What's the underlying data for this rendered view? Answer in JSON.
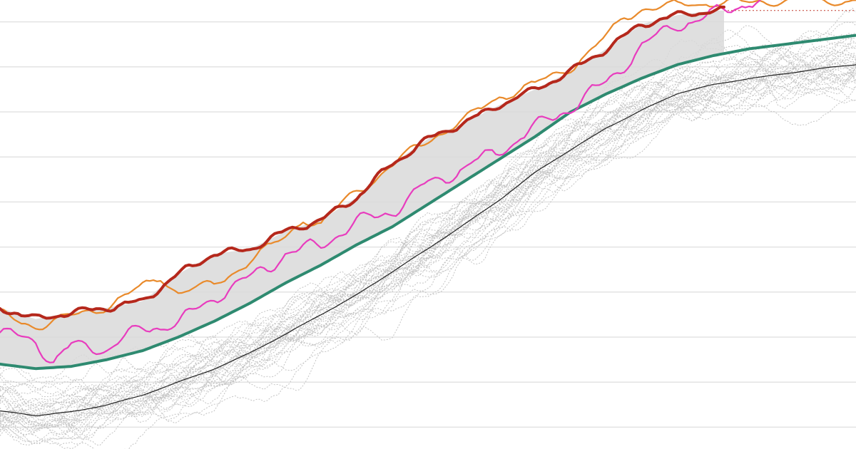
{
  "chart_data": {
    "type": "line",
    "title": "",
    "xlabel": "",
    "ylabel": "",
    "grid": true,
    "legend": "none",
    "xlim": [
      0,
      240
    ],
    "ylim": [
      0,
      20
    ],
    "gridlines": [
      1,
      3,
      5,
      7,
      9,
      11,
      13,
      15,
      17,
      19
    ],
    "reference_level": 19.5,
    "range_band_end_x": 203,
    "colors": {
      "current": "#b5281c",
      "orange": "#e98a2b",
      "magenta": "#e83cbe",
      "mean": "#2e8a70",
      "median": "#222222",
      "band": "#d9d9d9",
      "background_lines": "#c4c4c4",
      "reference": "#c0392b",
      "gridline": "#e3e3e3"
    },
    "series": [
      {
        "key": "current",
        "x": [
          0,
          10,
          20,
          30,
          40,
          50,
          60,
          70,
          80,
          90,
          100,
          110,
          120,
          130,
          140,
          150,
          160,
          170,
          180,
          190,
          200,
          203
        ],
        "values": [
          6.3,
          5.8,
          6.1,
          6.3,
          6.6,
          7.8,
          8.7,
          8.9,
          9.7,
          10.2,
          11.2,
          12.7,
          13.8,
          14.5,
          15.3,
          16.0,
          16.8,
          17.8,
          18.9,
          19.3,
          19.5,
          19.5
        ]
      },
      {
        "key": "orange",
        "x": [
          0,
          10,
          20,
          30,
          40,
          45,
          50,
          60,
          70,
          80,
          85,
          90,
          100,
          110,
          120,
          130,
          140,
          150,
          160,
          170,
          175,
          180,
          190,
          200,
          210,
          220,
          230,
          240
        ],
        "values": [
          6.0,
          5.5,
          5.9,
          6.4,
          7.2,
          7.7,
          7.0,
          7.3,
          8.4,
          9.4,
          10.3,
          10.0,
          11.5,
          12.6,
          13.8,
          14.6,
          15.7,
          16.2,
          17.0,
          18.3,
          19.2,
          19.6,
          19.7,
          19.9,
          19.8,
          20.0,
          19.9,
          20.0
        ]
      },
      {
        "key": "magenta",
        "x": [
          0,
          10,
          15,
          20,
          30,
          40,
          50,
          60,
          70,
          80,
          90,
          100,
          110,
          120,
          130,
          140,
          150,
          160,
          170,
          180,
          190,
          200,
          210,
          220
        ],
        "values": [
          5.2,
          4.8,
          3.9,
          4.6,
          4.5,
          5.4,
          5.6,
          6.8,
          7.6,
          8.7,
          9.1,
          10.1,
          10.6,
          11.8,
          12.5,
          13.3,
          14.3,
          15.2,
          16.3,
          17.9,
          18.9,
          19.3,
          19.9,
          20.0
        ]
      },
      {
        "key": "mean",
        "x": [
          0,
          10,
          20,
          30,
          40,
          50,
          60,
          70,
          80,
          90,
          100,
          110,
          120,
          130,
          140,
          150,
          160,
          170,
          180,
          190,
          200,
          210,
          220,
          230,
          240
        ],
        "values": [
          3.8,
          3.6,
          3.7,
          4.0,
          4.4,
          5.0,
          5.7,
          6.5,
          7.4,
          8.2,
          9.1,
          9.9,
          10.9,
          11.9,
          12.9,
          13.9,
          15.0,
          15.8,
          16.5,
          17.1,
          17.5,
          17.8,
          18.0,
          18.2,
          18.4
        ]
      },
      {
        "key": "median",
        "x": [
          0,
          10,
          20,
          30,
          40,
          50,
          60,
          70,
          80,
          90,
          100,
          110,
          120,
          130,
          140,
          150,
          160,
          170,
          180,
          190,
          200,
          210,
          220,
          230,
          240
        ],
        "values": [
          1.7,
          1.5,
          1.7,
          2.0,
          2.4,
          3.0,
          3.6,
          4.3,
          5.1,
          6.0,
          6.9,
          7.9,
          8.9,
          10.0,
          11.1,
          12.3,
          13.3,
          14.3,
          15.1,
          15.8,
          16.2,
          16.5,
          16.7,
          16.9,
          17.1
        ]
      }
    ]
  }
}
